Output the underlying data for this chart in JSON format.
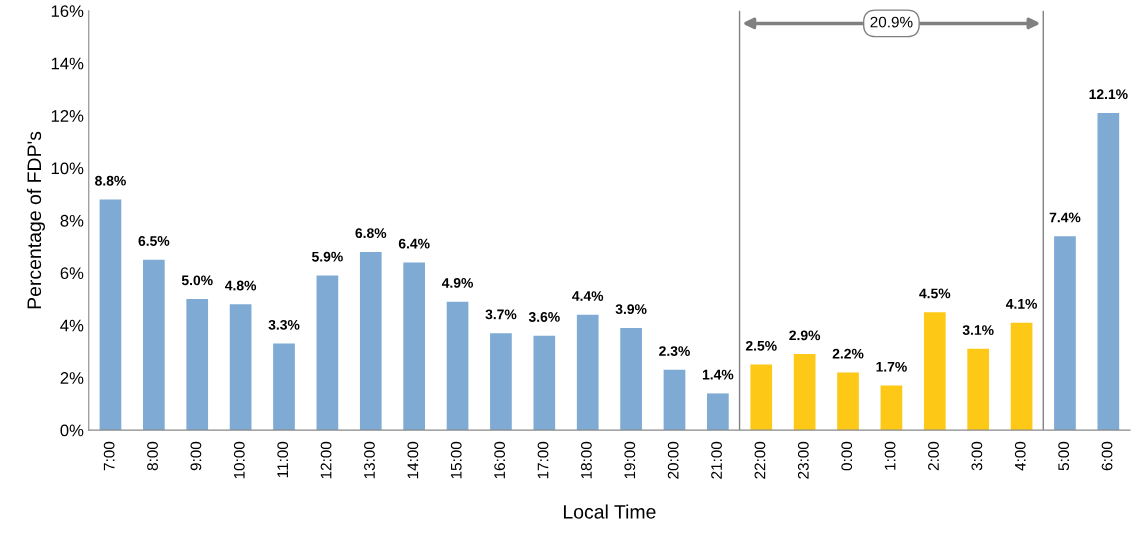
{
  "chart_data": {
    "type": "bar",
    "xlabel": "Local Time",
    "ylabel": "Percentage of FDP's",
    "categories": [
      "7:00",
      "8:00",
      "9:00",
      "10:00",
      "11:00",
      "12:00",
      "13:00",
      "14:00",
      "15:00",
      "16:00",
      "17:00",
      "18:00",
      "19:00",
      "20:00",
      "21:00",
      "22:00",
      "23:00",
      "0:00",
      "1:00",
      "2:00",
      "3:00",
      "4:00",
      "5:00",
      "6:00"
    ],
    "values": [
      8.8,
      6.5,
      5.0,
      4.8,
      3.3,
      5.9,
      6.8,
      6.4,
      4.9,
      3.7,
      3.6,
      4.4,
      3.9,
      2.3,
      1.4,
      2.5,
      2.9,
      2.2,
      1.7,
      4.5,
      3.1,
      4.1,
      7.4,
      12.1
    ],
    "value_labels": [
      "8.8%",
      "6.5%",
      "5.0%",
      "4.8%",
      "3.3%",
      "5.9%",
      "6.8%",
      "6.4%",
      "4.9%",
      "3.7%",
      "3.6%",
      "4.4%",
      "3.9%",
      "2.3%",
      "1.4%",
      "2.5%",
      "2.9%",
      "2.2%",
      "1.7%",
      "4.5%",
      "3.1%",
      "4.1%",
      "7.4%",
      "12.1%"
    ],
    "colors": [
      "#7eaad3",
      "#7eaad3",
      "#7eaad3",
      "#7eaad3",
      "#7eaad3",
      "#7eaad3",
      "#7eaad3",
      "#7eaad3",
      "#7eaad3",
      "#7eaad3",
      "#7eaad3",
      "#7eaad3",
      "#7eaad3",
      "#7eaad3",
      "#7eaad3",
      "#fec816",
      "#fec816",
      "#fec816",
      "#fec816",
      "#fec816",
      "#fec816",
      "#fec816",
      "#7eaad3",
      "#7eaad3"
    ],
    "ylim": [
      0,
      16
    ],
    "yticks": [
      {
        "value": 0,
        "label": "0%"
      },
      {
        "value": 2,
        "label": "2%"
      },
      {
        "value": 4,
        "label": "4%"
      },
      {
        "value": 6,
        "label": "6%"
      },
      {
        "value": 8,
        "label": "8%"
      },
      {
        "value": 10,
        "label": "10%"
      },
      {
        "value": 12,
        "label": "12%"
      },
      {
        "value": 14,
        "label": "14%"
      },
      {
        "value": 16,
        "label": "16%"
      }
    ],
    "annotations": [
      "20.9%"
    ],
    "grid": false,
    "legend": false
  }
}
